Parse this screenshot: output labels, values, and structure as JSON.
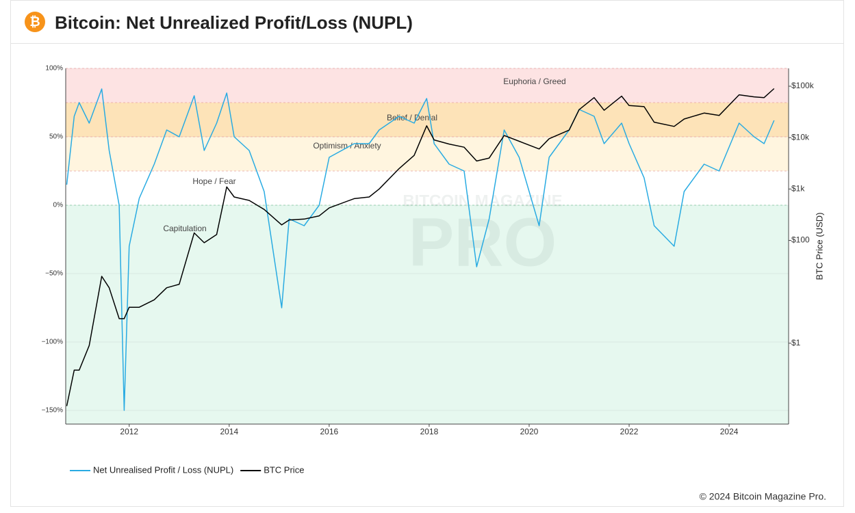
{
  "header": {
    "icon": "₿",
    "title": "Bitcoin: Net Unrealized Profit/Loss (NUPL)"
  },
  "chart_data": {
    "type": "line",
    "watermark": [
      "BITCOIN MAGAZINE",
      "PRO"
    ],
    "y2_label": "BTC Price (USD)",
    "x": [
      2010.75,
      2010.9,
      2011.0,
      2011.2,
      2011.45,
      2011.6,
      2011.8,
      2011.9,
      2012.0,
      2012.2,
      2012.5,
      2012.75,
      2013.0,
      2013.3,
      2013.5,
      2013.75,
      2013.95,
      2014.1,
      2014.4,
      2014.7,
      2015.05,
      2015.2,
      2015.5,
      2015.8,
      2016.0,
      2016.5,
      2016.8,
      2017.0,
      2017.4,
      2017.7,
      2017.95,
      2018.1,
      2018.4,
      2018.7,
      2018.95,
      2019.2,
      2019.5,
      2019.8,
      2020.2,
      2020.4,
      2020.8,
      2021.0,
      2021.3,
      2021.5,
      2021.85,
      2022.0,
      2022.3,
      2022.5,
      2022.9,
      2023.1,
      2023.5,
      2023.8,
      2024.2,
      2024.5,
      2024.7,
      2024.9
    ],
    "series": [
      {
        "name": "Net Unrealised Profit / Loss (NUPL)",
        "color": "#29abe2",
        "values": [
          15,
          65,
          75,
          60,
          85,
          40,
          0,
          -150,
          -30,
          5,
          30,
          55,
          50,
          80,
          40,
          60,
          82,
          50,
          40,
          10,
          -75,
          -10,
          -15,
          0,
          35,
          45,
          45,
          55,
          65,
          60,
          78,
          45,
          30,
          25,
          -45,
          -10,
          55,
          35,
          -15,
          35,
          55,
          70,
          65,
          45,
          60,
          45,
          20,
          -15,
          -30,
          10,
          30,
          25,
          60,
          50,
          45,
          62
        ]
      },
      {
        "name": "BTC Price",
        "color": "#000000",
        "axis": "y2",
        "values": [
          0.06,
          0.3,
          0.3,
          0.9,
          20,
          12,
          3,
          3,
          5,
          5,
          7,
          12,
          14,
          140,
          90,
          130,
          1100,
          700,
          600,
          400,
          200,
          250,
          260,
          300,
          430,
          650,
          700,
          1000,
          2500,
          4500,
          17000,
          9000,
          7500,
          6500,
          3500,
          4000,
          11000,
          8500,
          6000,
          9500,
          14000,
          35000,
          60000,
          34000,
          64000,
          42000,
          40000,
          20000,
          16500,
          23000,
          30000,
          27000,
          68000,
          62000,
          60000,
          90000
        ]
      }
    ],
    "zones": [
      {
        "label": "Euphoria / Greed",
        "from": 75,
        "to": 100,
        "color": "#fde3e3"
      },
      {
        "label": "Belief / Denial",
        "from": 50,
        "to": 75,
        "color": "#fde3b8"
      },
      {
        "label": "Optimism / Anxiety",
        "from": 25,
        "to": 50,
        "color": "#fff5df"
      },
      {
        "label": "Hope / Fear",
        "from": 0,
        "to": 25,
        "color": "#ffffff"
      },
      {
        "label": "Capitulation",
        "to": 0,
        "color": "#e6f8ef"
      }
    ],
    "xlim": [
      2010.73,
      2025.19
    ],
    "xticks": [
      2012,
      2014,
      2016,
      2018,
      2020,
      2022,
      2024
    ],
    "ylim": [
      -160,
      100
    ],
    "yticks": [
      {
        "value": 100,
        "label": "100%"
      },
      {
        "value": 50,
        "label": "50%"
      },
      {
        "value": 0,
        "label": "0%"
      },
      {
        "value": -50,
        "label": "−50%"
      },
      {
        "value": -100,
        "label": "−100%"
      },
      {
        "value": -150,
        "label": "−150%"
      }
    ],
    "y2lim": [
      0.0267,
      222000
    ],
    "y2log": true,
    "y2ticks": [
      {
        "value": 100000,
        "label": "$100k"
      },
      {
        "value": 10000,
        "label": "$10k"
      },
      {
        "value": 1000,
        "label": "$1k"
      },
      {
        "value": 100,
        "label": "$100"
      },
      {
        "value": 1,
        "label": "$1"
      }
    ],
    "grid": true,
    "legend": "bottom-left"
  },
  "footer": "© 2024 Bitcoin Magazine Pro."
}
